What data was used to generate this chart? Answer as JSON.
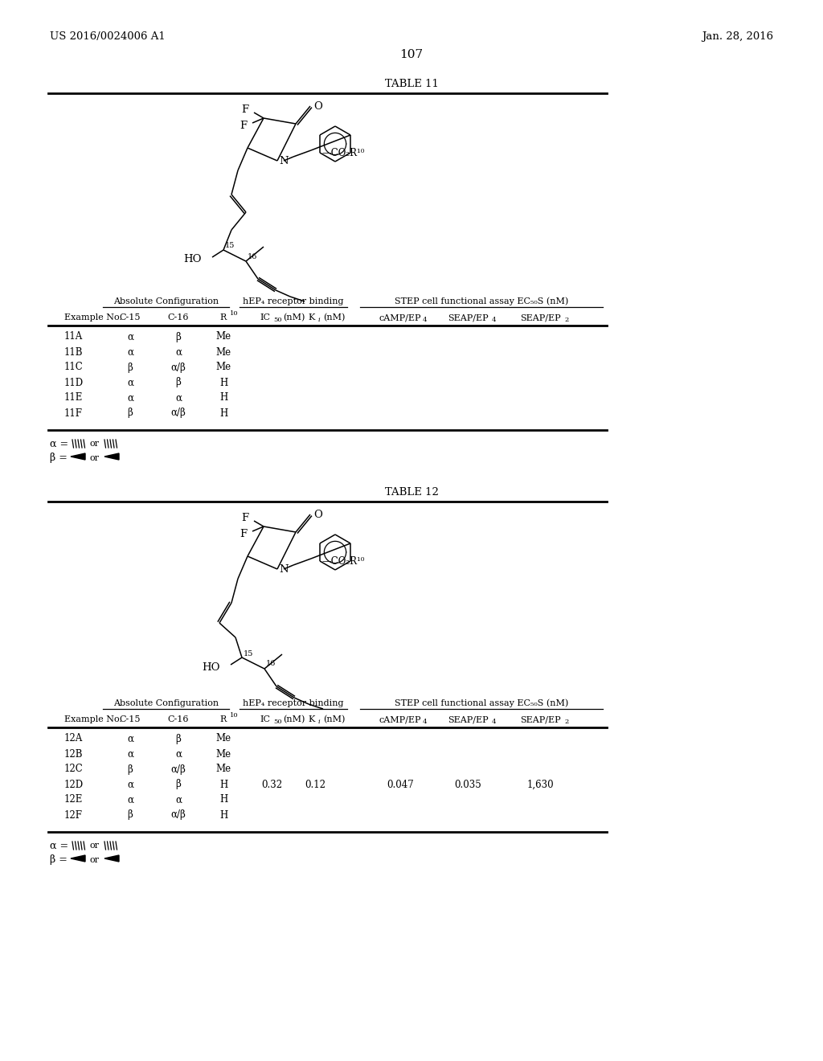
{
  "page_number": "107",
  "patent_left": "US 2016/0024006 A1",
  "patent_right": "Jan. 28, 2016",
  "table11_title": "TABLE 11",
  "table12_title": "TABLE 12",
  "col_headers": [
    "Example No.",
    "C-15",
    "C-16",
    "R",
    "IC",
    "K",
    "cAMP/EP",
    "SEAP/EP",
    "SEAP/EP"
  ],
  "table11_rows": [
    [
      "11A",
      "α",
      "β",
      "Me",
      "",
      "",
      "",
      "",
      ""
    ],
    [
      "11B",
      "α",
      "α",
      "Me",
      "",
      "",
      "",
      "",
      ""
    ],
    [
      "11C",
      "β",
      "α/β",
      "Me",
      "",
      "",
      "",
      "",
      ""
    ],
    [
      "11D",
      "α",
      "β",
      "H",
      "",
      "",
      "",
      "",
      ""
    ],
    [
      "11E",
      "α",
      "α",
      "H",
      "",
      "",
      "",
      "",
      ""
    ],
    [
      "11F",
      "β",
      "α/β",
      "H",
      "",
      "",
      "",
      "",
      ""
    ]
  ],
  "table12_rows": [
    [
      "12A",
      "α",
      "β",
      "Me",
      "",
      "",
      "",
      "",
      ""
    ],
    [
      "12B",
      "α",
      "α",
      "Me",
      "",
      "",
      "",
      "",
      ""
    ],
    [
      "12C",
      "β",
      "α/β",
      "Me",
      "",
      "",
      "",
      "",
      ""
    ],
    [
      "12D",
      "α",
      "β",
      "H",
      "0.32",
      "0.12",
      "0.047",
      "0.035",
      "1,630"
    ],
    [
      "12E",
      "α",
      "α",
      "H",
      "",
      "",
      "",
      "",
      ""
    ],
    [
      "12F",
      "β",
      "α/β",
      "H",
      "",
      "",
      "",
      "",
      ""
    ]
  ]
}
